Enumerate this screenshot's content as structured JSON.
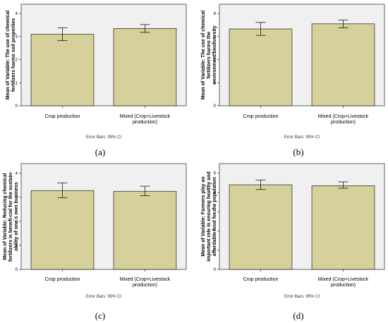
{
  "error_bar_note": "Error Bars: 95% CI",
  "chart_data": [
    {
      "type": "bar",
      "panel_label": "(a)",
      "ylabel": [
        "Mean of Variable: The use of chemical",
        "fertilizers harms soil properties"
      ],
      "categories": [
        [
          "Crop production"
        ],
        [
          "Mixed (Crop+Livestock",
          "production)"
        ]
      ],
      "values": [
        3.1,
        3.35
      ],
      "ci_low": [
        2.82,
        3.18
      ],
      "ci_high": [
        3.38,
        3.52
      ],
      "ylim": [
        0,
        4.4
      ],
      "yticks": [
        0,
        1,
        2,
        3,
        4
      ],
      "bar_color": "#d6d09a",
      "plot_bg": "#f0f0f0"
    },
    {
      "type": "bar",
      "panel_label": "(b)",
      "ylabel": [
        "Mean of Variable: The use of chemical",
        "fertilizers harms the",
        "environment/biodiversity"
      ],
      "categories": [
        [
          "Crop production"
        ],
        [
          "Mixed (Crop+Livestock",
          "production)"
        ]
      ],
      "values": [
        3.33,
        3.55
      ],
      "ci_low": [
        3.05,
        3.38
      ],
      "ci_high": [
        3.61,
        3.72
      ],
      "ylim": [
        0,
        4.4
      ],
      "yticks": [
        0,
        1,
        2,
        3,
        4
      ],
      "bar_color": "#d6d09a",
      "plot_bg": "#f0f0f0"
    },
    {
      "type": "bar",
      "panel_label": "(c)",
      "ylabel": [
        "Mean of Variable: Reducing chemical",
        "fertilizers is benefi-cial for the sustain-",
        "ability of one`s own business"
      ],
      "categories": [
        [
          "Crop production"
        ],
        [
          "Mixed (Crop+Livestock",
          "production)"
        ]
      ],
      "values": [
        3.28,
        3.25
      ],
      "ci_low": [
        2.98,
        3.06
      ],
      "ci_high": [
        3.6,
        3.46
      ],
      "ylim": [
        0,
        4.4
      ],
      "yticks": [
        0,
        1,
        2,
        3,
        4
      ],
      "bar_color": "#d6d09a",
      "plot_bg": "#f0f0f0"
    },
    {
      "type": "bar",
      "panel_label": "(d)",
      "ylabel": [
        "Mean of Variable: Farmers play an",
        "important role in ensuring healthy and",
        "affordable food for the population"
      ],
      "categories": [
        [
          "Crop production"
        ],
        [
          "Mixed (Crop+Livestock",
          "production)"
        ]
      ],
      "values": [
        4.4,
        4.35
      ],
      "ci_low": [
        4.15,
        4.22
      ],
      "ci_high": [
        4.65,
        4.55
      ],
      "ylim": [
        0,
        5.5
      ],
      "yticks": [
        0,
        1,
        2,
        3,
        4,
        5
      ],
      "bar_color": "#d6d09a",
      "plot_bg": "#f0f0f0"
    }
  ]
}
